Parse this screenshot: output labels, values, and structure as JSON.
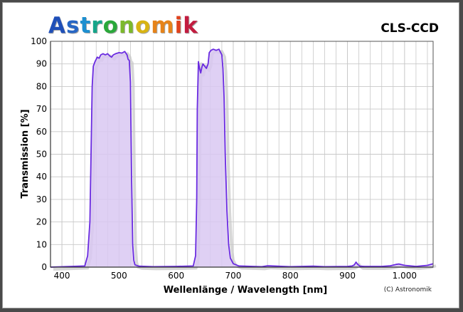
{
  "brand": {
    "name": "Astronomik",
    "letter_colors": [
      "#1f4fb8",
      "#2766c4",
      "#1d8fd0",
      "#15a58a",
      "#2aa83a",
      "#7cb92b",
      "#d8b413",
      "#e6831a",
      "#e0421c",
      "#c21b3f"
    ]
  },
  "filter_name": "CLS-CCD",
  "colors": {
    "curve": "#6a2be0",
    "fill": "#d9c8f2",
    "shadow": "#c6c6c6",
    "grid": "#c8c8c8",
    "axis": "#555555"
  },
  "chart_data": {
    "type": "line",
    "title": "",
    "xlabel": "Wellenlänge / Wavelength [nm]",
    "ylabel": "Transmission [%]",
    "xlim": [
      380,
      1050
    ],
    "ylim": [
      0,
      100
    ],
    "x_ticks": [
      400,
      500,
      600,
      700,
      800,
      900,
      1000
    ],
    "x_tick_labels": [
      "400",
      "500",
      "600",
      "700",
      "800",
      "900",
      "1.000"
    ],
    "y_ticks": [
      0,
      10,
      20,
      30,
      40,
      50,
      60,
      70,
      80,
      90,
      100
    ],
    "grid": true,
    "copyright": "(C) Astronomik",
    "series": [
      {
        "x": [
          380,
          440,
          445,
          449,
          451,
          453,
          455,
          458,
          462,
          465,
          468,
          472,
          476,
          480,
          484,
          487,
          490,
          494,
          500,
          505,
          510,
          514,
          516,
          518,
          520,
          522,
          524,
          526,
          528,
          535,
          560,
          600,
          630,
          634,
          636,
          637,
          639,
          641,
          643,
          645,
          647,
          650,
          653,
          656,
          658,
          661,
          665,
          670,
          675,
          678,
          680,
          682,
          684,
          686,
          689,
          692,
          695,
          700,
          710,
          750,
          760,
          800,
          840,
          860,
          900,
          908,
          912,
          915,
          918,
          922,
          930,
          960,
          975,
          985,
          990,
          1000,
          1020,
          1040,
          1050
        ],
        "y": [
          0,
          0.5,
          5,
          20,
          50,
          80,
          89,
          91,
          93,
          92.5,
          94,
          94.5,
          94,
          94.5,
          93.5,
          93,
          94,
          94.5,
          95,
          94.8,
          95.5,
          94,
          92,
          91.5,
          82,
          40,
          10,
          3,
          1,
          0.4,
          0.2,
          0.3,
          0.5,
          5,
          30,
          70,
          91,
          88,
          86,
          88.5,
          90,
          89,
          88,
          90,
          95,
          96,
          96.5,
          96,
          96.5,
          95,
          94,
          88,
          75,
          50,
          25,
          10,
          4,
          1.5,
          0.5,
          0.2,
          0.6,
          0.2,
          0.4,
          0.2,
          0.3,
          0.5,
          1,
          2.2,
          1.2,
          0.4,
          0.3,
          0.3,
          0.6,
          1.2,
          1.4,
          0.8,
          0.3,
          0.8,
          1.5
        ]
      }
    ]
  }
}
